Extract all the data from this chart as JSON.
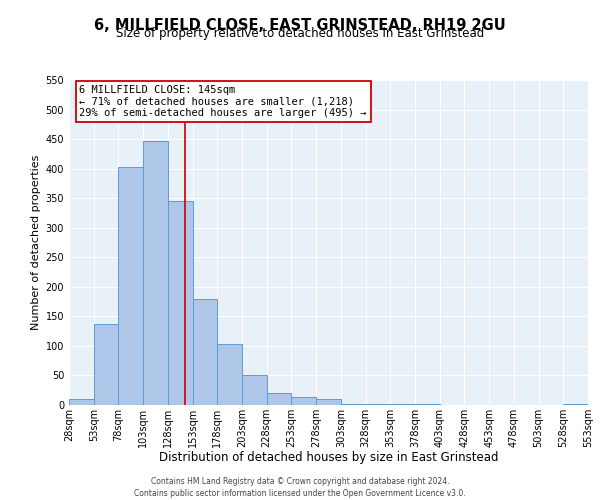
{
  "title": "6, MILLFIELD CLOSE, EAST GRINSTEAD, RH19 2GU",
  "subtitle": "Size of property relative to detached houses in East Grinstead",
  "xlabel": "Distribution of detached houses by size in East Grinstead",
  "ylabel": "Number of detached properties",
  "bin_edges": [
    28,
    53,
    78,
    103,
    128,
    153,
    178,
    203,
    228,
    253,
    278,
    303,
    328,
    353,
    378,
    403,
    428,
    453,
    478,
    503,
    528,
    553
  ],
  "bar_heights": [
    10,
    137,
    403,
    447,
    345,
    180,
    103,
    51,
    20,
    14,
    10,
    2,
    1,
    1,
    1,
    0,
    0,
    0,
    0,
    0,
    2
  ],
  "bar_color": "#aec6e8",
  "bar_edge_color": "#5b9bd5",
  "property_size": 145,
  "vline_color": "#cc0000",
  "annotation_line1": "6 MILLFIELD CLOSE: 145sqm",
  "annotation_line2": "← 71% of detached houses are smaller (1,218)",
  "annotation_line3": "29% of semi-detached houses are larger (495) →",
  "annotation_box_color": "#ffffff",
  "annotation_box_edge_color": "#cc0000",
  "ylim": [
    0,
    550
  ],
  "yticks": [
    0,
    50,
    100,
    150,
    200,
    250,
    300,
    350,
    400,
    450,
    500,
    550
  ],
  "xlim_start": 28,
  "xlim_end": 553,
  "background_color": "#e8f0f8",
  "footer_line1": "Contains HM Land Registry data © Crown copyright and database right 2024.",
  "footer_line2": "Contains public sector information licensed under the Open Government Licence v3.0.",
  "title_fontsize": 10.5,
  "subtitle_fontsize": 8.5,
  "xlabel_fontsize": 8.5,
  "ylabel_fontsize": 8,
  "tick_fontsize": 7,
  "annotation_fontsize": 7.5,
  "footer_fontsize": 5.5
}
